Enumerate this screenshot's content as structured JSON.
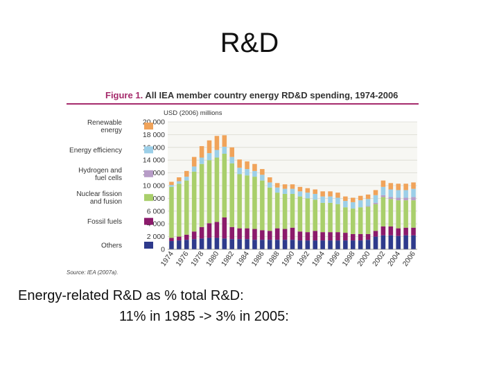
{
  "slide": {
    "title": "R&D",
    "caption_line1": "Energy-related R&D as % total R&D:",
    "caption_line2": "11% in 1985 -> 3% in 2005:"
  },
  "figure": {
    "label": "Figure 1.",
    "title": "All IEA member country energy RD&D spending, 1974-2006",
    "source": "Source: IEA (2007a)."
  },
  "chart_data": {
    "type": "bar",
    "stacked": true,
    "title": "All IEA member country energy RD&D spending, 1974-2006",
    "ylabel": "USD (2006) millions",
    "xlabel": "",
    "ylim": [
      0,
      20000
    ],
    "yticks": [
      0,
      2000,
      4000,
      6000,
      8000,
      10000,
      12000,
      14000,
      16000,
      18000,
      20000
    ],
    "ytick_labels": [
      "0",
      "2 000",
      "4 000",
      "6 000",
      "8 000",
      "10 000",
      "12 000",
      "14 000",
      "16 000",
      "18 000",
      "20 000"
    ],
    "categories": [
      "1974",
      "1975",
      "1976",
      "1977",
      "1978",
      "1979",
      "1980",
      "1981",
      "1982",
      "1983",
      "1984",
      "1985",
      "1986",
      "1987",
      "1988",
      "1989",
      "1990",
      "1991",
      "1992",
      "1993",
      "1994",
      "1995",
      "1996",
      "1997",
      "1998",
      "1999",
      "2000",
      "2001",
      "2002",
      "2003",
      "2004",
      "2005",
      "2006"
    ],
    "xtick_labels": [
      "1974",
      "",
      "1976",
      "",
      "1978",
      "",
      "1980",
      "",
      "1982",
      "",
      "1984",
      "",
      "1986",
      "",
      "1988",
      "",
      "1990",
      "",
      "1992",
      "",
      "1994",
      "",
      "1996",
      "",
      "1998",
      "",
      "2000",
      "",
      "2002",
      "",
      "2004",
      "",
      "2006"
    ],
    "legend_position": "left",
    "series": [
      {
        "name": "Others",
        "color": "#2e3a8c",
        "values": [
          1300,
          1400,
          1500,
          1600,
          1700,
          1800,
          1800,
          1700,
          1600,
          1600,
          1600,
          1500,
          1500,
          1500,
          1500,
          1500,
          1500,
          1400,
          1400,
          1400,
          1400,
          1400,
          1400,
          1400,
          1400,
          1400,
          1500,
          2000,
          2200,
          2200,
          2100,
          2200,
          2200
        ]
      },
      {
        "name": "Fossil fuels",
        "color": "#8b1a6b",
        "values": [
          500,
          600,
          800,
          1200,
          1800,
          2300,
          2500,
          3300,
          1900,
          1700,
          1700,
          1700,
          1500,
          1400,
          1800,
          1700,
          1900,
          1400,
          1300,
          1500,
          1300,
          1300,
          1300,
          1200,
          1000,
          1000,
          900,
          900,
          1400,
          1400,
          1200,
          1200,
          1200
        ]
      },
      {
        "name": "Nuclear fission and fusion",
        "color": "#a9cf6b",
        "values": [
          8000,
          8300,
          8500,
          9400,
          9900,
          9900,
          10100,
          10000,
          10000,
          8500,
          8300,
          8200,
          7800,
          6800,
          5600,
          5500,
          5300,
          5500,
          5300,
          4900,
          4600,
          4600,
          4400,
          4000,
          4000,
          4200,
          4300,
          4200,
          4600,
          4300,
          4400,
          4300,
          4300
        ]
      },
      {
        "name": "Hydrogen and fuel cells",
        "color": "#b79cc7",
        "values": [
          0,
          0,
          0,
          0,
          0,
          0,
          0,
          0,
          0,
          0,
          0,
          0,
          0,
          0,
          0,
          0,
          0,
          0,
          0,
          0,
          0,
          0,
          0,
          0,
          0,
          0,
          100,
          200,
          300,
          300,
          400,
          400,
          500
        ]
      },
      {
        "name": "Energy efficiency",
        "color": "#9ccfe8",
        "values": [
          300,
          400,
          600,
          800,
          1000,
          1100,
          1200,
          1100,
          1000,
          1000,
          1000,
          900,
          900,
          800,
          800,
          800,
          800,
          800,
          900,
          900,
          1000,
          1000,
          1000,
          1000,
          1000,
          1100,
          1100,
          1200,
          1300,
          1200,
          1200,
          1200,
          1300
        ]
      },
      {
        "name": "Renewable energy",
        "color": "#f0a35a",
        "values": [
          500,
          600,
          900,
          1500,
          1800,
          2000,
          2200,
          1800,
          1500,
          1300,
          1200,
          1100,
          900,
          800,
          700,
          700,
          700,
          700,
          700,
          700,
          800,
          800,
          800,
          700,
          700,
          700,
          700,
          800,
          1000,
          1000,
          1000,
          1000,
          1000
        ]
      }
    ],
    "legend_labels": [
      {
        "series": "Renewable energy",
        "text": [
          "Renewable",
          "energy"
        ]
      },
      {
        "series": "Energy efficiency",
        "text": [
          "Energy efficiency"
        ]
      },
      {
        "series": "Hydrogen and fuel cells",
        "text": [
          "Hydrogen and",
          "fuel cells"
        ]
      },
      {
        "series": "Nuclear fission and fusion",
        "text": [
          "Nuclear fission",
          "and fusion"
        ]
      },
      {
        "series": "Fossil fuels",
        "text": [
          "Fossil fuels"
        ]
      },
      {
        "series": "Others",
        "text": [
          "Others"
        ]
      }
    ]
  }
}
